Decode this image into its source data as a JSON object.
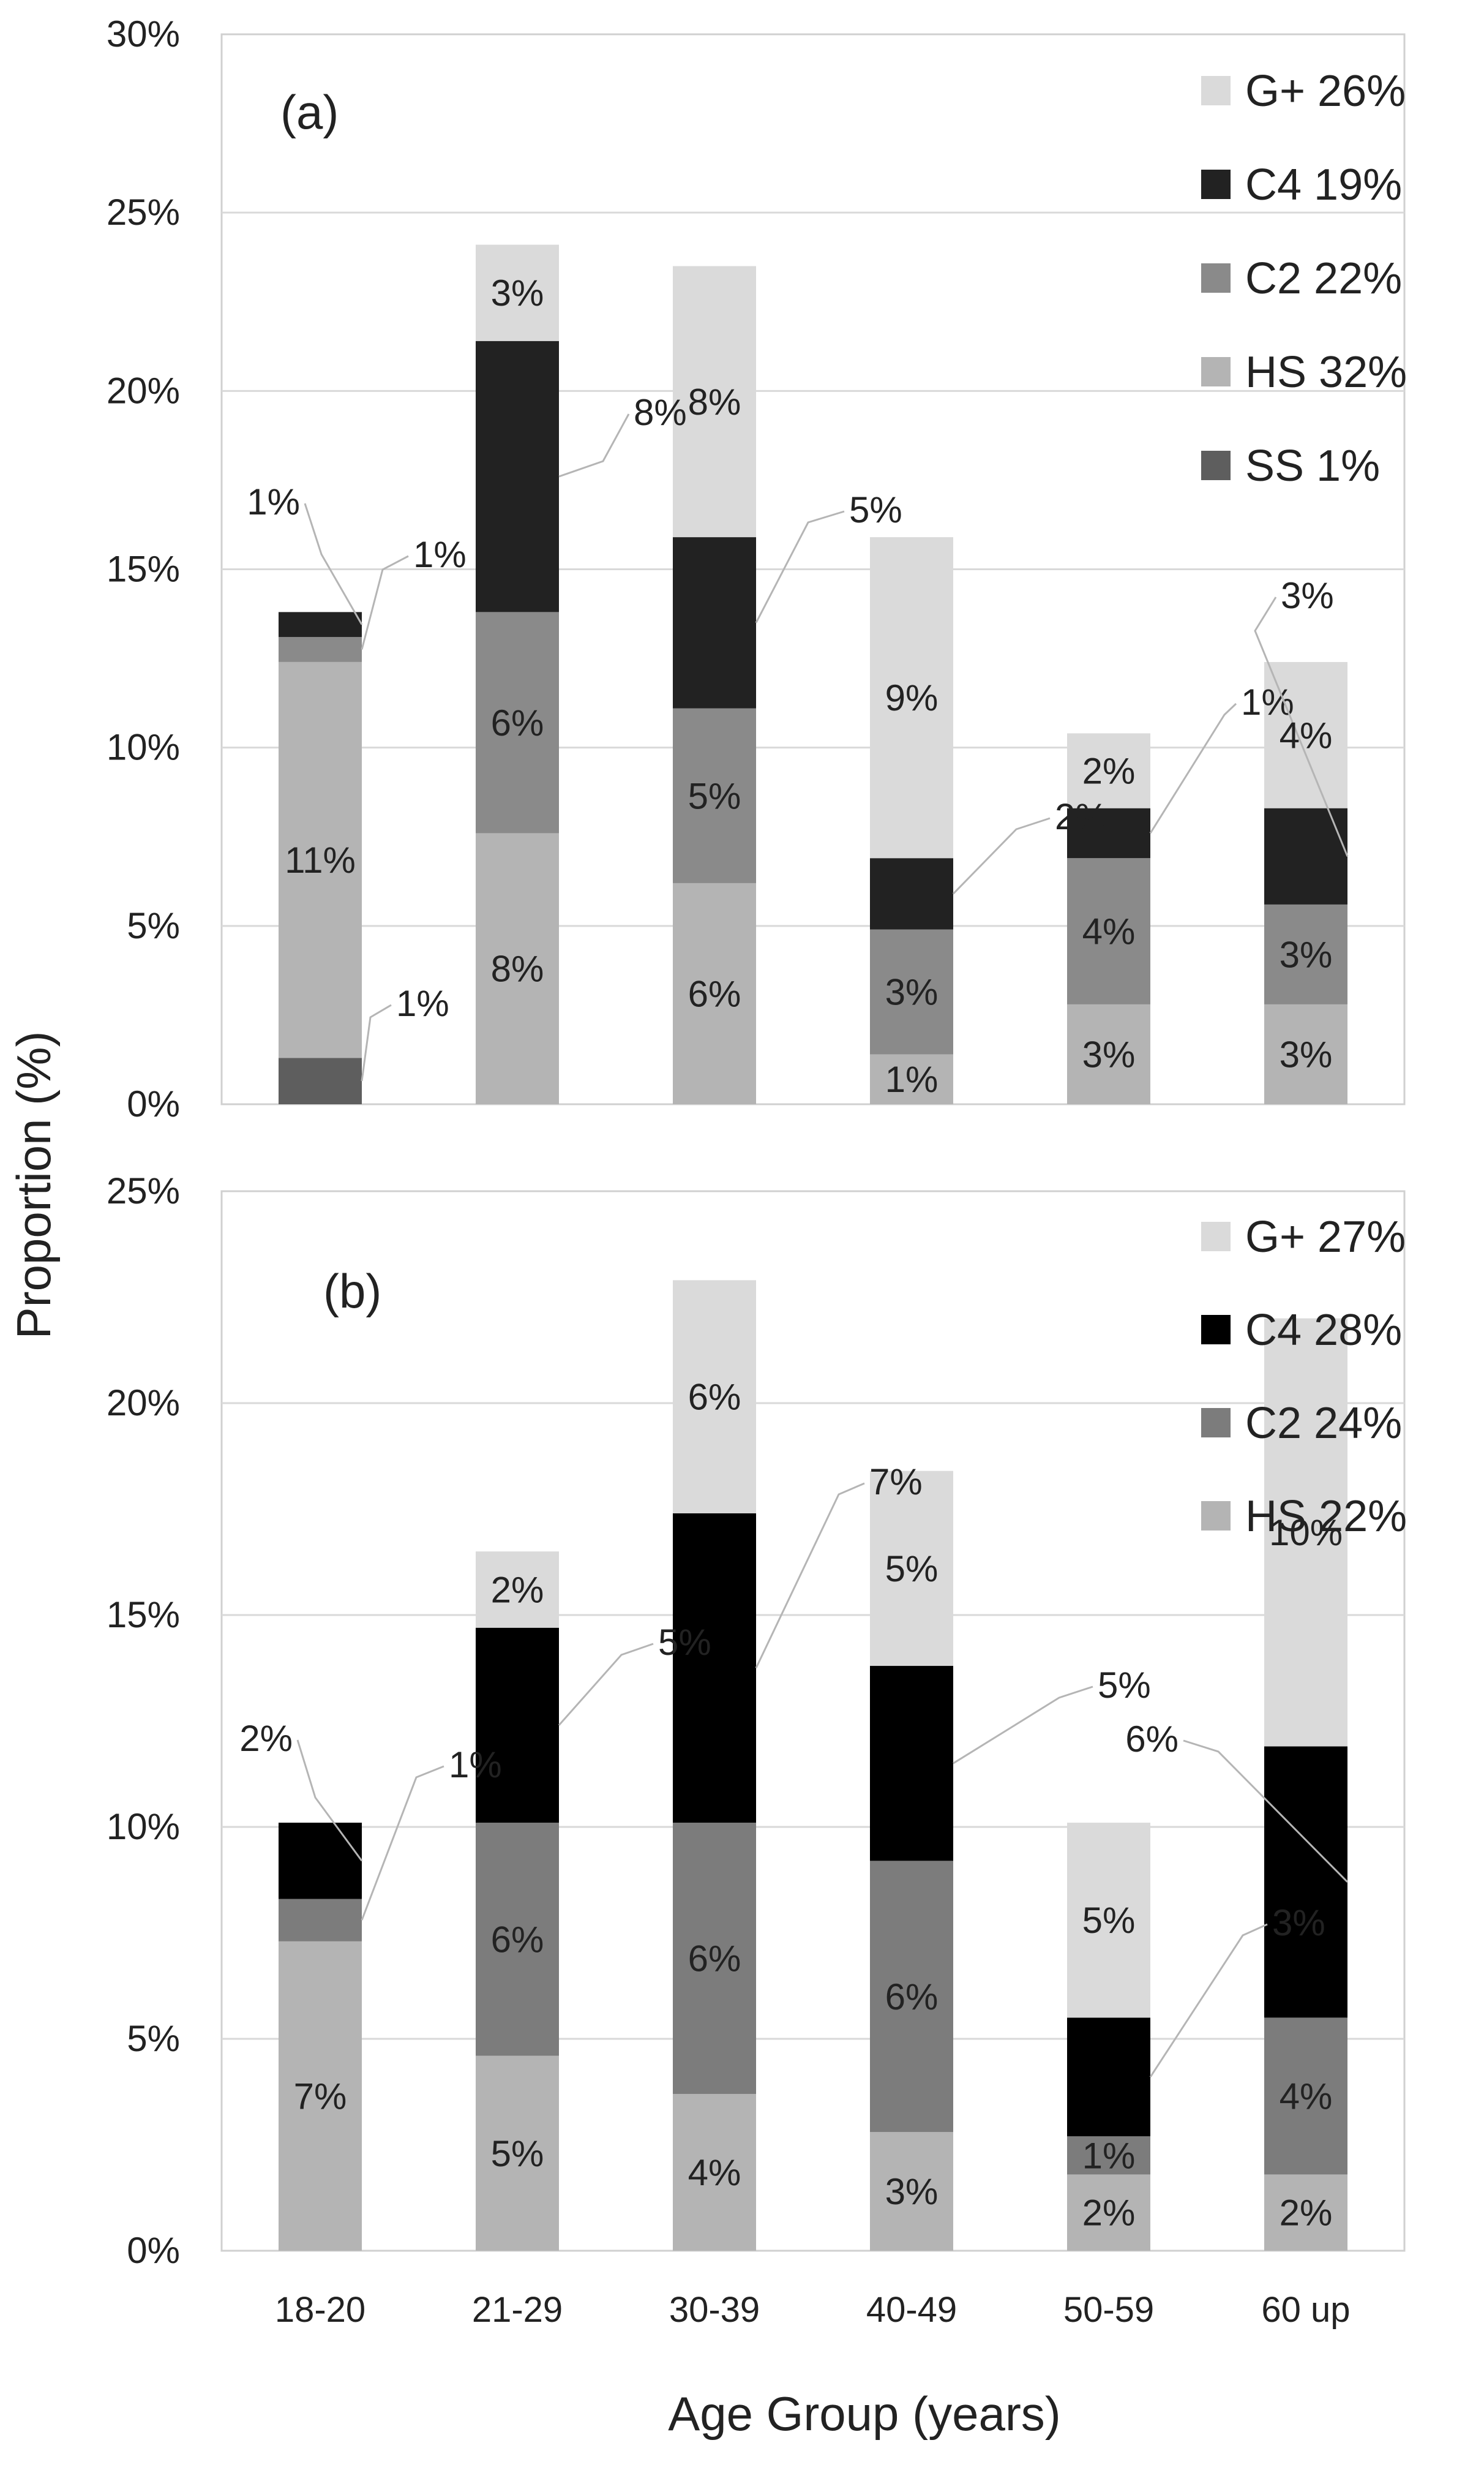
{
  "chart_data": {
    "type": "bar",
    "stacked": true,
    "ylabel": "Proportion (%)",
    "xlabel": "Age Group (years)",
    "categories": [
      "18-20",
      "21-29",
      "30-39",
      "40-49",
      "50-59",
      "60 up"
    ],
    "panels": [
      {
        "tag": "(a)",
        "ylim": [
          0,
          30
        ],
        "yticks": [
          0,
          5,
          10,
          15,
          20,
          25,
          30
        ],
        "series": [
          {
            "name": "SS",
            "legend": "SS  1%",
            "color": "#5e5e5e",
            "values": [
              1.3,
              0,
              0,
              0,
              0,
              0
            ],
            "labels": [
              "1%",
              "",
              "",
              "",
              "",
              ""
            ]
          },
          {
            "name": "HS",
            "legend": "HS  32%",
            "color": "#b4b4b4",
            "values": [
              11.1,
              7.6,
              6.2,
              1.4,
              2.8,
              2.8
            ],
            "labels": [
              "11%",
              "8%",
              "6%",
              "1%",
              "3%",
              "3%"
            ]
          },
          {
            "name": "C2",
            "legend": "C2  22%",
            "color": "#8a8a8a",
            "values": [
              0.7,
              6.2,
              4.9,
              3.5,
              4.1,
              2.8
            ],
            "labels": [
              "1%",
              "6%",
              "5%",
              "3%",
              "4%",
              "3%"
            ]
          },
          {
            "name": "C4",
            "legend": "C4  19%",
            "color": "#222222",
            "values": [
              0.7,
              7.6,
              4.8,
              2.0,
              1.4,
              2.7
            ],
            "labels": [
              "1%",
              "8%",
              "5%",
              "2%",
              "1%",
              "3%"
            ]
          },
          {
            "name": "G+",
            "legend": "G+  26%",
            "color": "#dadada",
            "values": [
              0,
              2.7,
              7.6,
              9.0,
              2.1,
              4.1
            ],
            "labels": [
              "",
              "3%",
              "8%",
              "9%",
              "2%",
              "4%"
            ]
          }
        ]
      },
      {
        "tag": "(b)",
        "ylim": [
          0,
          25
        ],
        "yticks": [
          0,
          5,
          10,
          15,
          20,
          25
        ],
        "series": [
          {
            "name": "HS",
            "legend": "HS  22%",
            "color": "#b4b4b4",
            "values": [
              7.3,
              4.6,
              3.7,
              2.8,
              1.8,
              1.8
            ],
            "labels": [
              "7%",
              "5%",
              "4%",
              "3%",
              "2%",
              "2%"
            ]
          },
          {
            "name": "C2",
            "legend": "C2  24%",
            "color": "#7c7c7c",
            "values": [
              1.0,
              5.5,
              6.4,
              6.4,
              0.9,
              3.7
            ],
            "labels": [
              "1%",
              "6%",
              "6%",
              "6%",
              "1%",
              "4%"
            ]
          },
          {
            "name": "C4",
            "legend": "C4  28%",
            "color": "#000000",
            "values": [
              1.8,
              4.6,
              7.3,
              4.6,
              2.8,
              6.4
            ],
            "labels": [
              "2%",
              "5%",
              "7%",
              "5%",
              "3%",
              "6%"
            ]
          },
          {
            "name": "G+",
            "legend": "G+  27%",
            "color": "#dadada",
            "values": [
              0,
              1.8,
              5.5,
              4.6,
              4.6,
              10.1
            ],
            "labels": [
              "",
              "2%",
              "6%",
              "5%",
              "5%",
              "10%"
            ]
          }
        ]
      }
    ]
  }
}
